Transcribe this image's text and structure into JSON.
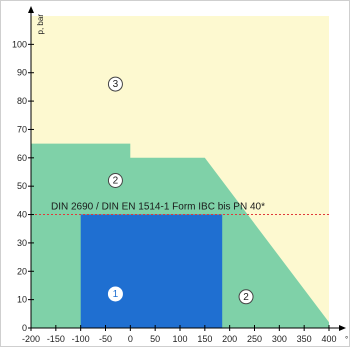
{
  "chart_data": {
    "type": "area",
    "title": "",
    "xlabel": "",
    "ylabel": "",
    "x_unit": "°",
    "y_unit": "p, bar",
    "xlim": [
      -200,
      400
    ],
    "ylim": [
      0,
      110
    ],
    "x_ticks": [
      -200,
      -150,
      -100,
      -50,
      0,
      50,
      100,
      150,
      200,
      250,
      300,
      350,
      400
    ],
    "x_tick_labels": [
      "-200",
      "-150",
      "-100",
      "-50",
      "0",
      "50",
      "100",
      "150",
      "200",
      "250",
      "300",
      "350",
      "400"
    ],
    "y_ticks": [
      0,
      10,
      20,
      30,
      40,
      50,
      60,
      70,
      80,
      90,
      100
    ],
    "y_tick_labels": [
      "0",
      "10",
      "20",
      "30",
      "40",
      "50",
      "60",
      "70",
      "80",
      "90",
      "100"
    ],
    "grid": false,
    "regions": [
      {
        "id": 3,
        "marker": "3",
        "color": "#fdf9d0",
        "polygon": [
          [
            -200,
            0
          ],
          [
            400,
            0
          ],
          [
            400,
            110
          ],
          [
            -200,
            110
          ]
        ]
      },
      {
        "id": 2,
        "marker": "2",
        "color": "#7fd1a8",
        "polygon": [
          [
            -200,
            0
          ],
          [
            400,
            0
          ],
          [
            400,
            2
          ],
          [
            150,
            60
          ],
          [
            0,
            60
          ],
          [
            0,
            65
          ],
          [
            -200,
            65
          ]
        ]
      },
      {
        "id": 1,
        "marker": "1",
        "color": "#1f6fd1",
        "polygon": [
          [
            -100,
            0
          ],
          [
            185,
            0
          ],
          [
            185,
            40
          ],
          [
            -100,
            40
          ]
        ]
      }
    ],
    "reference_line": {
      "y": 40,
      "x_range": [
        -200,
        400
      ],
      "color": "#e03a3a",
      "style": "dotted",
      "label": "DIN 2690 / DIN EN 1514-1 Form IBC bis PN 40*"
    },
    "markers": [
      {
        "label": "3",
        "x": -30,
        "y": 86,
        "fill": "#ffffff",
        "stroke": "#444444",
        "text": "#222222"
      },
      {
        "label": "2",
        "x": -30,
        "y": 52,
        "fill": "#ffffff",
        "stroke": "#444444",
        "text": "#222222"
      },
      {
        "label": "2",
        "x": 233,
        "y": 11,
        "fill": "#ffffff",
        "stroke": "#444444",
        "text": "#222222"
      },
      {
        "label": "1",
        "x": -30,
        "y": 12,
        "fill": "#ffffff",
        "stroke": "#ffffff",
        "text": "#1f6fd1"
      }
    ]
  }
}
